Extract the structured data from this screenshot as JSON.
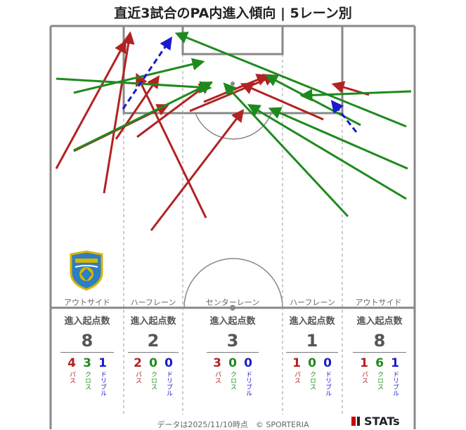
{
  "title": "直近3試合のPA内進入傾向 | 5レーン別",
  "lanes": [
    {
      "name": "アウトサイド",
      "head": "進入起点数",
      "total": "8",
      "pass": "4",
      "cross": "3",
      "dribble": "1"
    },
    {
      "name": "ハーフレーン",
      "head": "進入起点数",
      "total": "2",
      "pass": "2",
      "cross": "0",
      "dribble": "0"
    },
    {
      "name": "センターレーン",
      "head": "進入起点数",
      "total": "3",
      "pass": "3",
      "cross": "0",
      "dribble": "0"
    },
    {
      "name": "ハーフレーン",
      "head": "進入起点数",
      "total": "1",
      "pass": "1",
      "cross": "0",
      "dribble": "0"
    },
    {
      "name": "アウトサイド",
      "head": "進入起点数",
      "total": "8",
      "pass": "1",
      "cross": "6",
      "dribble": "1"
    }
  ],
  "labels": {
    "pass": "パス",
    "cross": "クロス",
    "dribble": "ドリブル"
  },
  "colors": {
    "pass": "#b22222",
    "cross": "#1e8a1e",
    "dribble": "#1a1acc",
    "pitch_line": "#888888"
  },
  "footer": "データは2025/11/10時点　© SPORTERIA",
  "brand": "STATs"
}
